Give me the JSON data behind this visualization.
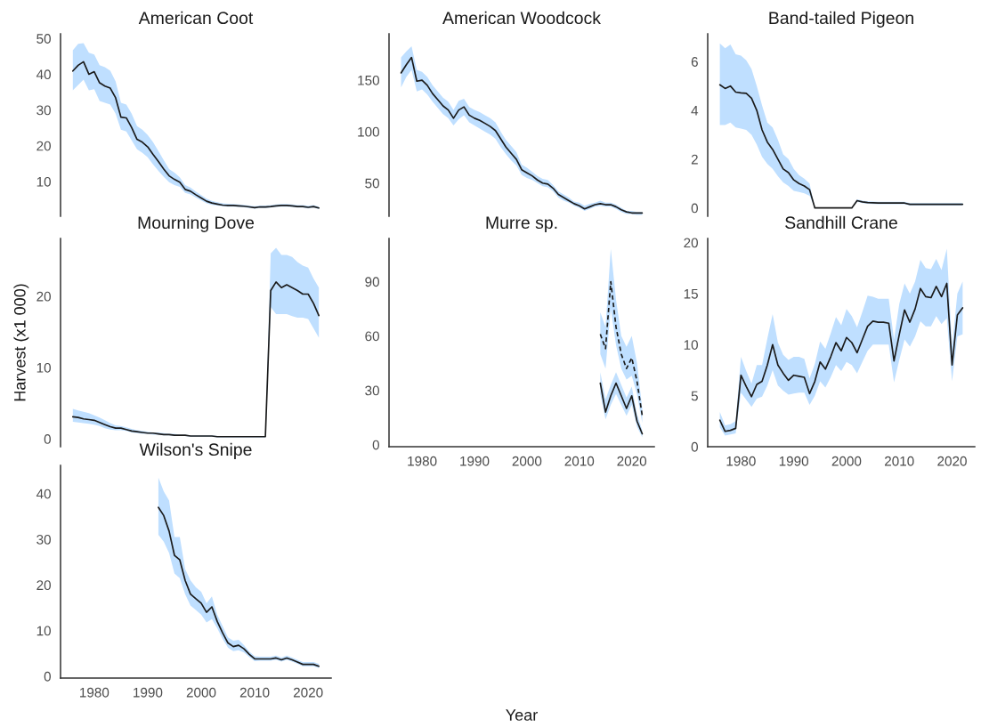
{
  "chart_data": [
    {
      "type": "line",
      "title": "American Coot",
      "tick_labels": "y",
      "x": [
        1976,
        1977,
        1978,
        1979,
        1980,
        1981,
        1982,
        1983,
        1984,
        1985,
        1986,
        1987,
        1988,
        1989,
        1990,
        1991,
        1992,
        1993,
        1994,
        1995,
        1996,
        1997,
        1998,
        1999,
        2000,
        2001,
        2002,
        2003,
        2004,
        2005,
        2006,
        2007,
        2008,
        2009,
        2010,
        2011,
        2012,
        2013,
        2014,
        2015,
        2016,
        2017,
        2018,
        2019,
        2020,
        2021,
        2022
      ],
      "ylim": [
        0.3,
        51.3
      ],
      "yticks": [
        10,
        20,
        30,
        40,
        50
      ],
      "series": [
        {
          "color": "#1a1a1a",
          "values": [
            40.9,
            42.5,
            43.5,
            40,
            40.7,
            37.6,
            36.7,
            36.1,
            33.4,
            28,
            27.8,
            25.1,
            21.8,
            21,
            19.7,
            17.6,
            15.6,
            13.5,
            11.6,
            10.6,
            9.8,
            7.8,
            7.3,
            6.3,
            5.4,
            4.5,
            4,
            3.7,
            3.4,
            3.3,
            3.3,
            3.2,
            3.1,
            2.9,
            2.7,
            2.9,
            2.9,
            3,
            3.2,
            3.3,
            3.3,
            3.2,
            3,
            3,
            2.8,
            3,
            2.6
          ],
          "upper": [
            46.7,
            48.5,
            48.7,
            46,
            45.5,
            42.5,
            42,
            41,
            38,
            32,
            31.5,
            29,
            25.5,
            24.5,
            23,
            21,
            18.5,
            16,
            13.5,
            12.5,
            11.2,
            9,
            8.3,
            7.2,
            6.2,
            5.2,
            4.6,
            4.2,
            3.9,
            3.8,
            3.7,
            3.6,
            3.5,
            3.3,
            3.1,
            3.3,
            3.3,
            3.4,
            3.6,
            3.7,
            3.7,
            3.6,
            3.4,
            3.4,
            3.2,
            3.4,
            3
          ],
          "lower": [
            35.5,
            37,
            38.5,
            35.5,
            35.8,
            32.5,
            32,
            31.5,
            29,
            24.5,
            24,
            21.5,
            19,
            18,
            16.8,
            14.8,
            13,
            11.3,
            9.8,
            9,
            8.5,
            6.8,
            6.4,
            5.5,
            4.7,
            3.9,
            3.5,
            3.3,
            3.1,
            3,
            3,
            2.9,
            2.8,
            2.6,
            2.4,
            2.6,
            2.6,
            2.7,
            2.9,
            3,
            3,
            2.9,
            2.7,
            2.7,
            2.5,
            2.7,
            2.3
          ]
        }
      ]
    },
    {
      "type": "line",
      "title": "American Woodcock",
      "tick_labels": "y",
      "x": [
        1976,
        1977,
        1978,
        1979,
        1980,
        1981,
        1982,
        1983,
        1984,
        1985,
        1986,
        1987,
        1988,
        1989,
        1990,
        1991,
        1992,
        1993,
        1994,
        1995,
        1996,
        1997,
        1998,
        1999,
        2000,
        2001,
        2002,
        2003,
        2004,
        2005,
        2006,
        2007,
        2008,
        2009,
        2010,
        2011,
        2012,
        2013,
        2014,
        2015,
        2016,
        2017,
        2018,
        2019,
        2020,
        2021,
        2022
      ],
      "ylim": [
        17.8,
        195
      ],
      "yticks": [
        50,
        100,
        150
      ],
      "series": [
        {
          "color": "#1a1a1a",
          "values": [
            157,
            165,
            172,
            149,
            150,
            145,
            137,
            131,
            125,
            121,
            113,
            121,
            124,
            116,
            113,
            111,
            108,
            105,
            101,
            93,
            85,
            79,
            73,
            63,
            60,
            57,
            53,
            50,
            49,
            45,
            39,
            36,
            33,
            30,
            28,
            25,
            27,
            29,
            30,
            29,
            29,
            27,
            24,
            22,
            21,
            21,
            21
          ],
          "upper": [
            172,
            178,
            183,
            160,
            158,
            153,
            145,
            139,
            133,
            129,
            121,
            130,
            132,
            124,
            121,
            119,
            116,
            113,
            109,
            100,
            92,
            86,
            80,
            68,
            65,
            61,
            57,
            54,
            53,
            48,
            42,
            39,
            36,
            32,
            31,
            28,
            30,
            31,
            33,
            31,
            31,
            29,
            26,
            23,
            23,
            22,
            22
          ],
          "lower": [
            143,
            153,
            160,
            139,
            141,
            136,
            129,
            123,
            117,
            113,
            106,
            112,
            116,
            109,
            106,
            103,
            100,
            97,
            93,
            85,
            78,
            72,
            67,
            58,
            55,
            53,
            50,
            47,
            46,
            42,
            36,
            33,
            31,
            28,
            26,
            23,
            25,
            27,
            28,
            27,
            27,
            25,
            22,
            20,
            20,
            19,
            19
          ]
        }
      ]
    },
    {
      "type": "line",
      "title": "Band-tailed Pigeon",
      "tick_labels": "y",
      "x": [
        1976,
        1977,
        1978,
        1979,
        1980,
        1981,
        1982,
        1983,
        1984,
        1985,
        1986,
        1987,
        1988,
        1989,
        1990,
        1991,
        1992,
        1993,
        1994,
        1995,
        1996,
        1997,
        1998,
        1999,
        2000,
        2001,
        2002,
        2003,
        2004,
        2005,
        2006,
        2007,
        2008,
        2009,
        2010,
        2011,
        2012,
        2013,
        2014,
        2015,
        2016,
        2017,
        2018,
        2019,
        2020,
        2021,
        2022
      ],
      "ylim": [
        -0.34,
        7.14
      ],
      "yticks": [
        0,
        2,
        4,
        6
      ],
      "series": [
        {
          "color": "#1a1a1a",
          "values": [
            5.05,
            4.9,
            5.0,
            4.75,
            4.72,
            4.7,
            4.5,
            4.0,
            3.2,
            2.7,
            2.4,
            2.0,
            1.6,
            1.45,
            1.15,
            1.0,
            0.9,
            0.75,
            0,
            0,
            0,
            0,
            0,
            0,
            0,
            0,
            0.3,
            0.25,
            0.22,
            0.21,
            0.2,
            0.2,
            0.2,
            0.2,
            0.2,
            0.2,
            0.15,
            0.15,
            0.15,
            0.15,
            0.15,
            0.15,
            0.15,
            0.15,
            0.15,
            0.15,
            0.15
          ],
          "upper": [
            6.75,
            6.55,
            6.7,
            6.3,
            6.25,
            6.05,
            5.7,
            5.0,
            4.2,
            3.5,
            3.3,
            2.8,
            2.2,
            2.0,
            1.6,
            1.35,
            1.2,
            1.0,
            0,
            0,
            0,
            0,
            0,
            0,
            0,
            0,
            0.35,
            0.3,
            0.27,
            0.26,
            0.25,
            0.25,
            0.25,
            0.25,
            0.25,
            0.25,
            0.2,
            0.2,
            0.2,
            0.2,
            0.2,
            0.2,
            0.2,
            0.2,
            0.2,
            0.2,
            0.2
          ],
          "lower": [
            3.4,
            3.4,
            3.5,
            3.3,
            3.25,
            3.2,
            3.0,
            2.6,
            2.1,
            1.8,
            1.6,
            1.3,
            1.05,
            0.9,
            0.7,
            0.65,
            0.6,
            0.5,
            0,
            0,
            0,
            0,
            0,
            0,
            0,
            0,
            0.25,
            0.2,
            0.17,
            0.16,
            0.15,
            0.15,
            0.15,
            0.15,
            0.15,
            0.15,
            0.1,
            0.1,
            0.1,
            0.1,
            0.1,
            0.1,
            0.1,
            0.1,
            0.1,
            0.1,
            0.1
          ]
        }
      ]
    },
    {
      "type": "line",
      "title": "Mourning Dove",
      "ylabel": "Harvest (x1 000)",
      "tick_labels": "y",
      "x": [
        1976,
        1977,
        1978,
        1979,
        1980,
        1981,
        1982,
        1983,
        1984,
        1985,
        1986,
        1987,
        1988,
        1989,
        1990,
        1991,
        1992,
        1993,
        1994,
        1995,
        1996,
        1997,
        1998,
        1999,
        2000,
        2001,
        2002,
        2003,
        2004,
        2005,
        2006,
        2007,
        2008,
        2009,
        2010,
        2011,
        2012,
        2013,
        2014,
        2015,
        2016,
        2017,
        2018,
        2019,
        2020,
        2021,
        2022
      ],
      "ylim": [
        -1.1,
        28.1
      ],
      "yticks": [
        0,
        10,
        20
      ],
      "series": [
        {
          "color": "#1a1a1a",
          "values": [
            3.1,
            3.0,
            2.8,
            2.7,
            2.6,
            2.3,
            2.0,
            1.7,
            1.5,
            1.5,
            1.3,
            1.1,
            1.0,
            0.9,
            0.8,
            0.8,
            0.7,
            0.6,
            0.6,
            0.5,
            0.5,
            0.5,
            0.4,
            0.4,
            0.4,
            0.4,
            0.4,
            0.3,
            0.3,
            0.3,
            0.3,
            0.3,
            0.3,
            0.3,
            0.3,
            0.3,
            0.3,
            20.8,
            22,
            21.2,
            21.6,
            21.2,
            20.8,
            20.3,
            20.3,
            19,
            17.3
          ],
          "upper": [
            4.2,
            4.0,
            3.8,
            3.6,
            3.3,
            3.0,
            2.6,
            2.2,
            1.9,
            1.8,
            1.6,
            1.4,
            1.2,
            1.1,
            1.0,
            0.9,
            0.9,
            0.8,
            0.7,
            0.7,
            0.6,
            0.6,
            0.5,
            0.5,
            0.5,
            0.5,
            0.5,
            0.4,
            0.4,
            0.4,
            0.4,
            0.4,
            0.4,
            0.4,
            0.4,
            0.4,
            0.4,
            26.0,
            26.8,
            25.8,
            25.8,
            25.5,
            24.8,
            24.3,
            24.0,
            22.5,
            21.2
          ],
          "lower": [
            2.4,
            2.3,
            2.2,
            2.1,
            2.0,
            1.8,
            1.5,
            1.3,
            1.2,
            1.2,
            1.1,
            0.9,
            0.8,
            0.7,
            0.7,
            0.6,
            0.6,
            0.5,
            0.5,
            0.4,
            0.4,
            0.4,
            0.3,
            0.3,
            0.3,
            0.3,
            0.3,
            0.2,
            0.2,
            0.2,
            0.2,
            0.2,
            0.2,
            0.2,
            0.2,
            0.2,
            0.2,
            18.5,
            17.5,
            17.5,
            17.5,
            17.2,
            17.0,
            17.0,
            16.8,
            15.5,
            14.2
          ]
        }
      ]
    },
    {
      "type": "line",
      "title": "Murre sp.",
      "xlabel": "Year",
      "xlim": [
        1973.7,
        2024.3
      ],
      "xticks": [
        1980,
        1990,
        2000,
        2010,
        2020
      ],
      "ylim": [
        -1.1,
        113.8
      ],
      "yticks": [
        0,
        30,
        60,
        90
      ],
      "series": [
        {
          "color": "#1a1a1a",
          "line_style": "dashed",
          "x": [
            2014,
            2015,
            2016,
            2017,
            2018,
            2019,
            2020,
            2021,
            2022
          ],
          "values": [
            61,
            53,
            90,
            65,
            50,
            42,
            48,
            35,
            16
          ],
          "upper": [
            73,
            65,
            108,
            80,
            60,
            54,
            60,
            45,
            20
          ],
          "lower": [
            50,
            42,
            75,
            55,
            42,
            36,
            38,
            28,
            12
          ]
        },
        {
          "color": "#1a1a1a",
          "line_style": "solid",
          "x": [
            2014,
            2015,
            2016,
            2017,
            2018,
            2019,
            2020,
            2021,
            2022
          ],
          "values": [
            34,
            18,
            27,
            34,
            27,
            20,
            27,
            13,
            6
          ],
          "upper": [
            40,
            25,
            33,
            40,
            33,
            26,
            32,
            17,
            8
          ],
          "lower": [
            28,
            14,
            22,
            28,
            22,
            16,
            22,
            10,
            4
          ]
        }
      ]
    },
    {
      "type": "line",
      "title": "Sandhill Crane",
      "x": [
        1976,
        1977,
        1978,
        1979,
        1980,
        1981,
        1982,
        1983,
        1984,
        1985,
        1986,
        1987,
        1988,
        1989,
        1990,
        1991,
        1992,
        1993,
        1994,
        1995,
        1996,
        1997,
        1998,
        1999,
        2000,
        2001,
        2002,
        2003,
        2004,
        2005,
        2006,
        2007,
        2008,
        2009,
        2010,
        2011,
        2012,
        2013,
        2014,
        2015,
        2016,
        2017,
        2018,
        2019,
        2020,
        2021,
        2022
      ],
      "xlim": [
        1973.7,
        2024.3
      ],
      "xticks": [
        1980,
        1990,
        2000,
        2010,
        2020
      ],
      "ylim": [
        0,
        20.4
      ],
      "yticks": [
        0,
        5,
        10,
        15,
        20
      ],
      "series": [
        {
          "color": "#1a1a1a",
          "values": [
            2.6,
            1.5,
            1.6,
            1.8,
            7.0,
            5.9,
            4.9,
            6.1,
            6.4,
            8.0,
            10.0,
            8.0,
            7.2,
            6.5,
            7.0,
            6.9,
            6.8,
            5.2,
            6.4,
            8.3,
            7.6,
            8.8,
            10.2,
            9.4,
            10.7,
            10.2,
            9.2,
            10.5,
            11.8,
            12.3,
            12.2,
            12.2,
            12.1,
            8.4,
            11.0,
            13.4,
            12.2,
            13.5,
            15.5,
            14.7,
            14.6,
            15.7,
            14.7,
            16.0,
            8.0,
            12.9,
            13.6
          ],
          "upper": [
            3.4,
            2.1,
            2.2,
            2.5,
            8.8,
            7.4,
            6.2,
            8.0,
            8.0,
            10.6,
            13.0,
            10.2,
            9.0,
            8.5,
            8.8,
            8.8,
            8.6,
            6.7,
            8.1,
            10.3,
            9.6,
            11.1,
            12.7,
            11.9,
            13.5,
            12.8,
            11.7,
            13.2,
            14.8,
            14.7,
            14.5,
            14.5,
            14.5,
            10.5,
            14.0,
            16.0,
            15.0,
            16.2,
            18.3,
            17.5,
            17.4,
            18.4,
            17.3,
            19.4,
            9.8,
            15.0,
            16.2
          ],
          "lower": [
            1.9,
            1.1,
            1.2,
            1.3,
            5.3,
            4.6,
            3.9,
            4.7,
            4.9,
            6.0,
            7.5,
            6.0,
            5.5,
            5.1,
            5.2,
            5.3,
            5.3,
            4.1,
            5.0,
            6.4,
            5.8,
            6.8,
            8.0,
            7.4,
            8.3,
            8.0,
            7.2,
            8.3,
            9.4,
            10.0,
            10.0,
            10.0,
            10.0,
            6.3,
            8.5,
            10.5,
            9.8,
            10.8,
            12.3,
            11.8,
            11.8,
            12.8,
            12.0,
            12.6,
            6.4,
            10.8,
            11.0
          ]
        }
      ]
    },
    {
      "type": "line",
      "title": "Wilson's Snipe",
      "xlim": [
        1973.7,
        2024.3
      ],
      "xticks": [
        1980,
        1990,
        2000,
        2010,
        2020
      ],
      "ylim": [
        -0.4,
        46.2
      ],
      "yticks": [
        0,
        10,
        20,
        30,
        40
      ],
      "series": [
        {
          "color": "#1a1a1a",
          "x": [
            1992,
            1993,
            1994,
            1995,
            1996,
            1997,
            1998,
            1999,
            2000,
            2001,
            2002,
            2003,
            2004,
            2005,
            2006,
            2007,
            2008,
            2009,
            2010,
            2011,
            2012,
            2013,
            2014,
            2015,
            2016,
            2017,
            2018,
            2019,
            2020,
            2021,
            2022
          ],
          "values": [
            37,
            35.2,
            31.8,
            26.5,
            25.5,
            21,
            18,
            17,
            16,
            14,
            15.2,
            12,
            9.5,
            7.3,
            6.5,
            6.8,
            6,
            4.8,
            3.8,
            3.8,
            3.8,
            3.8,
            4.0,
            3.6,
            4.0,
            3.6,
            3.1,
            2.6,
            2.6,
            2.6,
            2.2
          ],
          "upper": [
            43.5,
            40.5,
            38.5,
            30.5,
            30.5,
            23.5,
            21,
            19.5,
            18.5,
            16,
            17.5,
            13.5,
            11,
            8.5,
            7.8,
            8,
            6.8,
            5.4,
            4.4,
            4.3,
            4.3,
            4.3,
            4.5,
            4.1,
            4.5,
            4.1,
            3.6,
            3.1,
            3.1,
            3.1,
            2.7
          ],
          "lower": [
            31,
            29.5,
            27,
            22.5,
            21.5,
            18,
            15.5,
            14.5,
            13.5,
            11.8,
            12.5,
            10.5,
            8.2,
            6.3,
            5.5,
            5.7,
            5.2,
            4.2,
            3.3,
            3.4,
            3.4,
            3.4,
            3.6,
            3.2,
            3.6,
            3.2,
            2.7,
            2.2,
            2.2,
            2.2,
            1.8
          ]
        }
      ]
    }
  ]
}
